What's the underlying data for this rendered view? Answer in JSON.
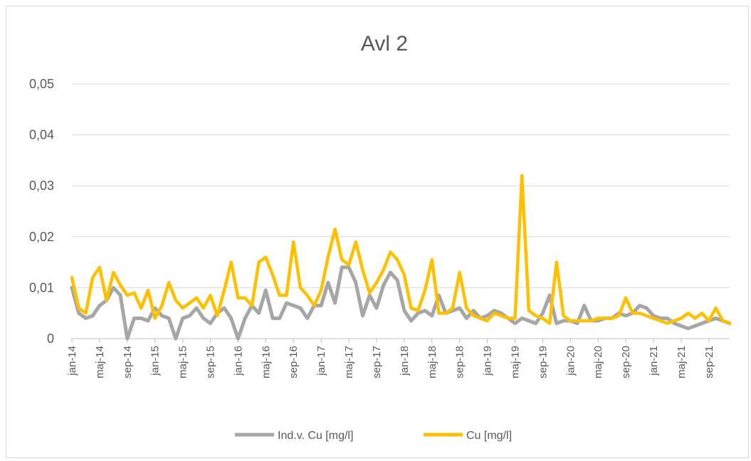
{
  "chart_data": {
    "type": "line",
    "title": "Avl 2",
    "xlabel": "",
    "ylabel": "",
    "ylim": [
      0,
      0.05
    ],
    "yticks": [
      "0",
      "0,01",
      "0,02",
      "0,03",
      "0,04",
      "0,05"
    ],
    "grid": true,
    "legend_position": "bottom",
    "x_tick_labels": [
      "jan-14",
      "maj-14",
      "sep-14",
      "jan-15",
      "maj-15",
      "sep-15",
      "jan-16",
      "maj-16",
      "sep-16",
      "jan-17",
      "maj-17",
      "sep-17",
      "jan-18",
      "maj-18",
      "sep-18",
      "jan-19",
      "maj-19",
      "sep-19",
      "jan-20",
      "maj-20",
      "sep-20",
      "jan-21",
      "maj-21",
      "sep-21"
    ],
    "series": [
      {
        "name": "Ind.v. Cu [mg/l]",
        "color": "#a6a6a6",
        "values": [
          0.01,
          0.005,
          0.004,
          0.0045,
          0.0065,
          0.0075,
          0.01,
          0.0085,
          0.0,
          0.004,
          0.004,
          0.0035,
          0.006,
          0.0045,
          0.004,
          0.0,
          0.004,
          0.0045,
          0.006,
          0.004,
          0.003,
          0.005,
          0.006,
          0.004,
          0.0,
          0.004,
          0.0065,
          0.005,
          0.0095,
          0.004,
          0.004,
          0.007,
          0.0065,
          0.006,
          0.004,
          0.0065,
          0.0065,
          0.011,
          0.007,
          0.014,
          0.014,
          0.011,
          0.0045,
          0.0085,
          0.006,
          0.0105,
          0.013,
          0.0115,
          0.0055,
          0.0035,
          0.005,
          0.0055,
          0.0045,
          0.0085,
          0.005,
          0.0055,
          0.006,
          0.004,
          0.0055,
          0.004,
          0.0045,
          0.0055,
          0.005,
          0.004,
          0.003,
          0.004,
          0.0035,
          0.003,
          0.005,
          0.0085,
          0.003,
          0.0035,
          0.0035,
          0.003,
          0.0065,
          0.0035,
          0.0035,
          0.004,
          0.004,
          0.005,
          0.0045,
          0.005,
          0.0065,
          0.006,
          0.0045,
          0.004,
          0.004,
          0.003,
          0.0025,
          0.002,
          0.0025,
          0.003,
          0.0035,
          0.004,
          0.0035,
          0.003
        ]
      },
      {
        "name": "Cu [mg/l]",
        "color": "#ffc000",
        "values": [
          0.012,
          0.006,
          0.005,
          0.012,
          0.014,
          0.0075,
          0.013,
          0.0105,
          0.0085,
          0.009,
          0.006,
          0.0095,
          0.004,
          0.0065,
          0.011,
          0.0075,
          0.006,
          0.007,
          0.008,
          0.006,
          0.0085,
          0.0045,
          0.0095,
          0.015,
          0.008,
          0.008,
          0.0065,
          0.015,
          0.016,
          0.0125,
          0.0085,
          0.0085,
          0.019,
          0.01,
          0.0085,
          0.0065,
          0.0095,
          0.016,
          0.0215,
          0.0155,
          0.0145,
          0.019,
          0.0135,
          0.009,
          0.011,
          0.0135,
          0.017,
          0.0155,
          0.0125,
          0.006,
          0.0055,
          0.0095,
          0.0155,
          0.005,
          0.005,
          0.006,
          0.013,
          0.006,
          0.0045,
          0.004,
          0.0035,
          0.005,
          0.0045,
          0.004,
          0.004,
          0.032,
          0.0055,
          0.0045,
          0.004,
          0.003,
          0.015,
          0.0045,
          0.0035,
          0.0035,
          0.0035,
          0.0035,
          0.004,
          0.004,
          0.004,
          0.0045,
          0.008,
          0.005,
          0.005,
          0.0045,
          0.004,
          0.0035,
          0.003,
          0.0035,
          0.004,
          0.005,
          0.004,
          0.005,
          0.0035,
          0.006,
          0.0035,
          0.003
        ]
      }
    ]
  }
}
